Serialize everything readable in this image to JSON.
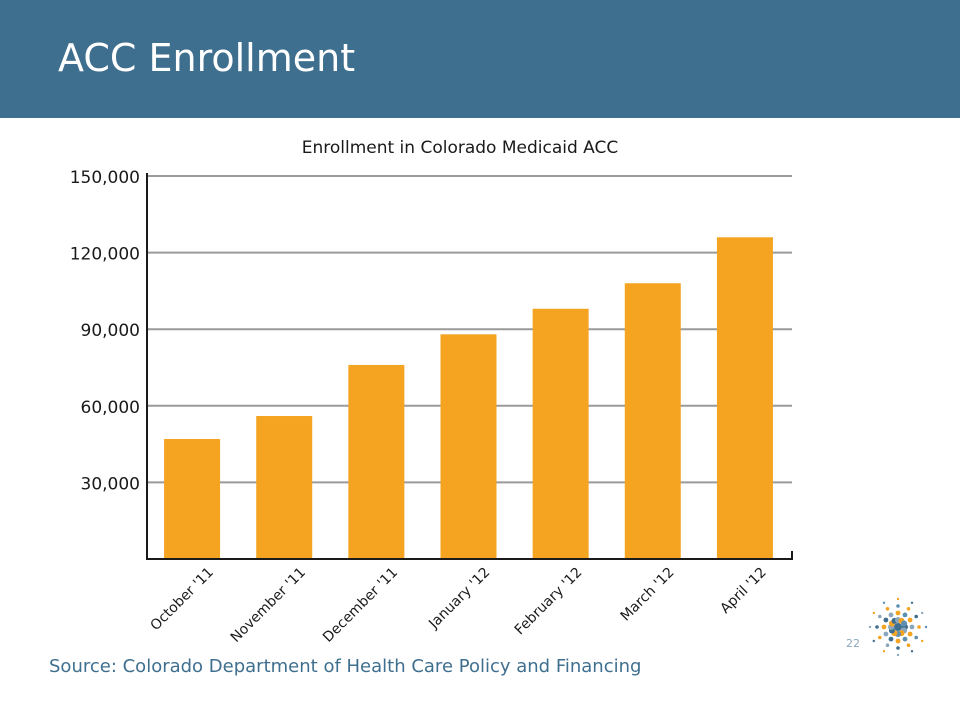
{
  "slide": {
    "title": "ACC Enrollment",
    "source": "Source: Colorado Department of Health Care Policy and Financing",
    "page_number": "22"
  },
  "colors": {
    "header": "#3f6f8f",
    "bar": "#f4a420",
    "grid": "#9a9a9a",
    "axis": "#1a1a1a",
    "source_text": "#3f6f8f"
  },
  "logo": {
    "icon": "starburst-dots-logo"
  },
  "chart_data": {
    "type": "bar",
    "title": "Enrollment in Colorado Medicaid ACC",
    "xlabel": "",
    "ylabel": "",
    "categories": [
      "October '11",
      "November '11",
      "December '11",
      "January '12",
      "February '12",
      "March '12",
      "April '12"
    ],
    "values": [
      47000,
      56000,
      76000,
      88000,
      98000,
      108000,
      126000
    ],
    "ylim": [
      0,
      150000
    ],
    "yticks": [
      {
        "value": 30000,
        "label": "30,000"
      },
      {
        "value": 60000,
        "label": "60,000"
      },
      {
        "value": 90000,
        "label": "90,000"
      },
      {
        "value": 120000,
        "label": "120,000"
      },
      {
        "value": 150000,
        "label": "150,000"
      }
    ],
    "grid": true,
    "legend": "none"
  }
}
